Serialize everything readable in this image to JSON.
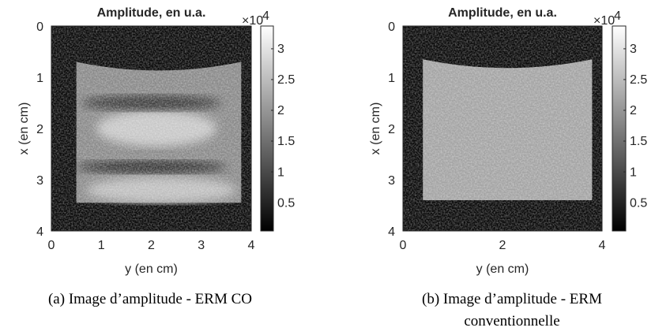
{
  "chart_data": [
    {
      "type": "image",
      "title": "Amplitude, en u.a.",
      "xlabel": "y (en cm)",
      "ylabel": "x (en cm)",
      "xlim": [
        0,
        4
      ],
      "xticks": [
        0,
        1,
        2,
        3,
        4
      ],
      "ylim": [
        0,
        4
      ],
      "yticks": [
        0,
        1,
        2,
        3,
        4
      ],
      "colormap": "gray",
      "clim": [
        0.04,
        3.37
      ],
      "cticks": [
        0.5,
        1,
        1.5,
        2,
        2.5,
        3
      ],
      "colorbar_multiplier": {
        "base": "×10",
        "exponent": "4"
      },
      "caption": "(a) Image d’amplitude - ERM CO"
    },
    {
      "type": "image",
      "title": "Amplitude, en u.a.",
      "xlabel": "y (en cm)",
      "ylabel": "x (en cm)",
      "xlim": [
        0,
        4
      ],
      "xticks": [
        0,
        2,
        4
      ],
      "ylim": [
        0,
        4
      ],
      "yticks": [
        0,
        1,
        2,
        3,
        4
      ],
      "colormap": "gray",
      "clim": [
        0.04,
        3.37
      ],
      "cticks": [
        0.5,
        1,
        1.5,
        2,
        2.5,
        3
      ],
      "colorbar_multiplier": {
        "base": "×10",
        "exponent": "4"
      },
      "caption": "(b) Image d’amplitude - ERM conventionnelle"
    }
  ]
}
